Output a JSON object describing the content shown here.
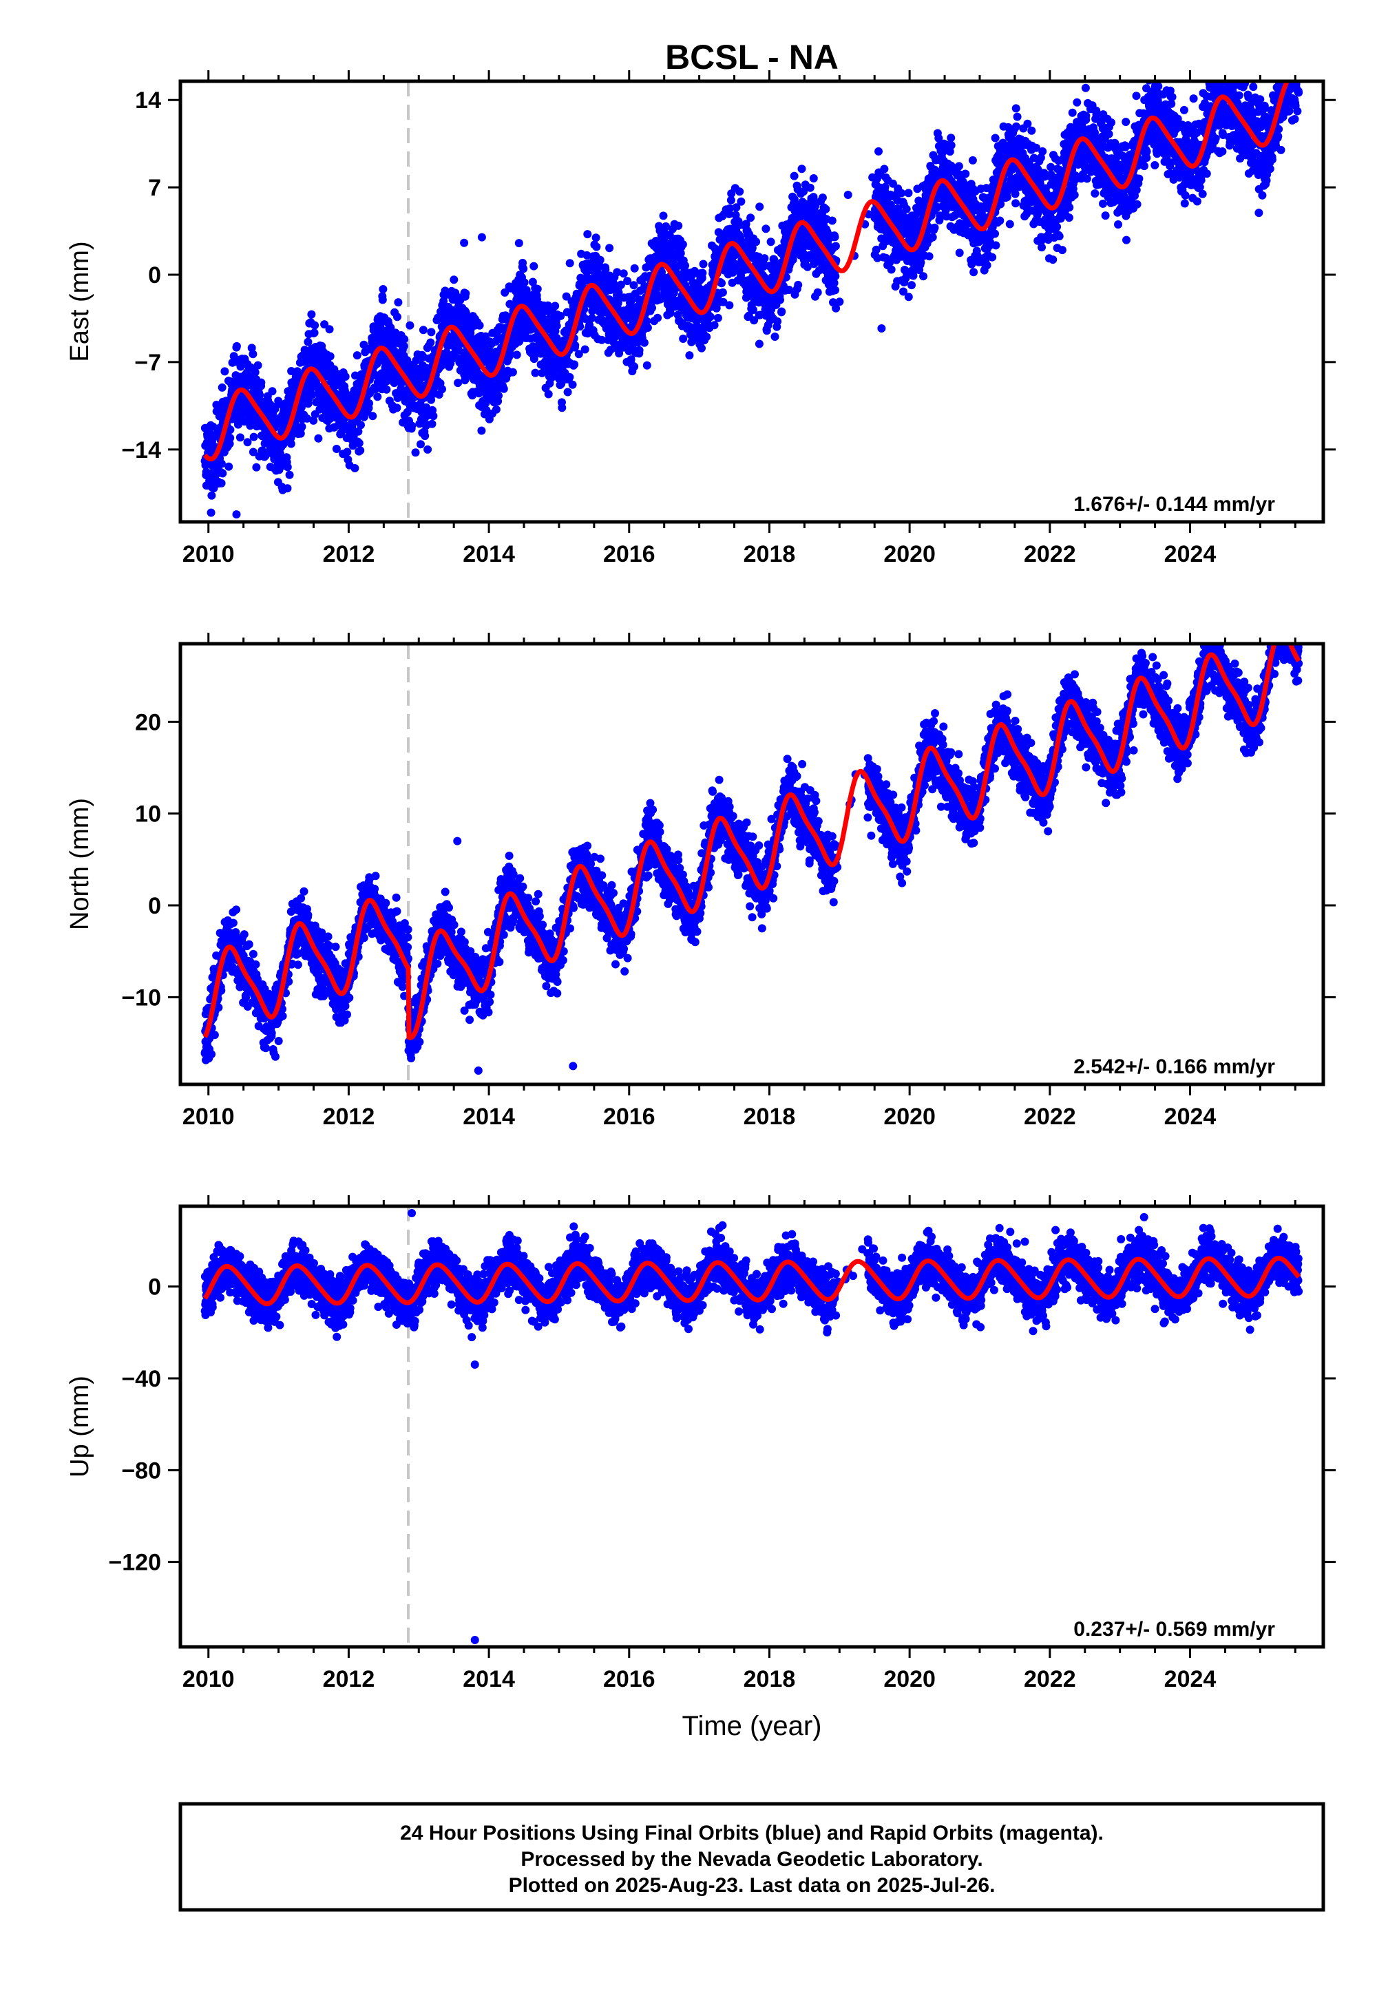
{
  "chart_data": {
    "title": "BCSL - NA",
    "xlabel": "Time (year)",
    "x_ticks": [
      2010,
      2012,
      2014,
      2016,
      2018,
      2020,
      2022,
      2024
    ],
    "xlim": [
      2009.6,
      2025.9
    ],
    "event_line": 2012.85,
    "colors": {
      "data": "#0000ff",
      "model": "#ff0000",
      "event": "#c8c8c8"
    },
    "panels": [
      {
        "type": "scatter",
        "id": "east",
        "ylabel": "East (mm)",
        "ylim": [
          -19.8,
          15.5
        ],
        "y_ticks": [
          14,
          7,
          0,
          -7,
          -14
        ],
        "y_tick_labels": [
          "14",
          "7",
          "0",
          "−7",
          "−14"
        ],
        "rate_label": "1.676+/- 0.144 mm/yr",
        "model": {
          "start": 2009.95,
          "end": 2025.55,
          "offset_at_start": -12.5,
          "rate": 1.676,
          "annual_amp": 2.3,
          "annual_phase": 0.25,
          "semi_amp": 0.4,
          "step_year": 2012.85,
          "step": 0
        },
        "scatter": {
          "noise": 1.7,
          "seed": 11,
          "gap": [
            2018.95,
            2019.5
          ]
        },
        "outliers": [
          {
            "x": 2013.9,
            "y": 3.0
          },
          {
            "x": 2019.6,
            "y": -4.3
          },
          {
            "x": 2010.4,
            "y": -19.2
          }
        ]
      },
      {
        "type": "scatter",
        "id": "north",
        "ylabel": "North (mm)",
        "ylim": [
          -19.5,
          28.5
        ],
        "y_ticks": [
          20,
          10,
          0,
          -10
        ],
        "y_tick_labels": [
          "20",
          "10",
          "0",
          "−10"
        ],
        "rate_label": "2.542+/- 0.166 mm/yr",
        "model": {
          "start": 2009.95,
          "end": 2025.55,
          "offset_at_start": -10.0,
          "rate": 2.542,
          "annual_amp": 4.2,
          "annual_phase": 0.1,
          "semi_amp": 1.0,
          "step_year": 2012.85,
          "step": -7.5
        },
        "scatter": {
          "noise": 1.6,
          "seed": 23,
          "gap": [
            2018.95,
            2019.4
          ]
        },
        "outliers": [
          {
            "x": 2013.55,
            "y": 7.0
          },
          {
            "x": 2015.2,
            "y": -17.5
          },
          {
            "x": 2013.85,
            "y": -18.0
          }
        ]
      },
      {
        "type": "scatter",
        "id": "up",
        "ylabel": "Up (mm)",
        "ylim": [
          -157,
          35
        ],
        "y_ticks": [
          0,
          -40,
          -80,
          -120
        ],
        "y_tick_labels": [
          "0",
          "−40",
          "−80",
          "−120"
        ],
        "rate_label": "0.237+/- 0.569 mm/yr",
        "model": {
          "start": 2009.95,
          "end": 2025.55,
          "offset_at_start": 0.5,
          "rate": 0.237,
          "annual_amp": 8.0,
          "annual_phase": 0.05,
          "semi_amp": 1.0,
          "step_year": 2012.85,
          "step": 0
        },
        "scatter": {
          "noise": 5.0,
          "seed": 37,
          "gap": [
            2018.95,
            2019.4
          ]
        },
        "outliers": [
          {
            "x": 2013.8,
            "y": -34
          },
          {
            "x": 2013.8,
            "y": -154
          },
          {
            "x": 2012.9,
            "y": 32
          }
        ]
      }
    ]
  },
  "footer": {
    "line1": "24 Hour Positions Using Final Orbits (blue) and Rapid Orbits (magenta).",
    "line2": "Processed by the Nevada Geodetic Laboratory.",
    "line3": "Plotted on 2025-Aug-23. Last data on 2025-Jul-26."
  }
}
